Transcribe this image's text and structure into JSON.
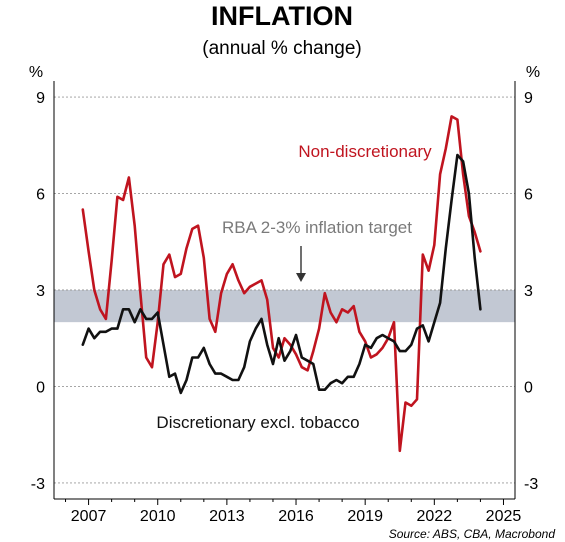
{
  "chart_data": {
    "type": "line",
    "title": "INFLATION",
    "subtitle": "(annual % change)",
    "y_unit_label": "%",
    "ylim": [
      -3.5,
      9.5
    ],
    "y_ticks": [
      -3,
      0,
      3,
      6,
      9
    ],
    "xlim": [
      2005.5,
      2025.5
    ],
    "x_ticks": [
      2007,
      2010,
      2013,
      2016,
      2019,
      2022,
      2025
    ],
    "grid": true,
    "target_band": {
      "label": "RBA 2-3% inflation target",
      "from": 2,
      "to": 3,
      "color": "#c2c8d3"
    },
    "source": "Source: ABS, CBA, Macrobond",
    "series": [
      {
        "name": "Non-discretionary",
        "color": "#c0141f",
        "x": [
          2006.75,
          2007.0,
          2007.25,
          2007.5,
          2007.75,
          2008.0,
          2008.25,
          2008.5,
          2008.75,
          2009.0,
          2009.25,
          2009.5,
          2009.75,
          2010.0,
          2010.25,
          2010.5,
          2010.75,
          2011.0,
          2011.25,
          2011.5,
          2011.75,
          2012.0,
          2012.25,
          2012.5,
          2012.75,
          2013.0,
          2013.25,
          2013.5,
          2013.75,
          2014.0,
          2014.25,
          2014.5,
          2014.75,
          2015.0,
          2015.25,
          2015.5,
          2015.75,
          2016.0,
          2016.25,
          2016.5,
          2016.75,
          2017.0,
          2017.25,
          2017.5,
          2017.75,
          2018.0,
          2018.25,
          2018.5,
          2018.75,
          2019.0,
          2019.25,
          2019.5,
          2019.75,
          2020.0,
          2020.25,
          2020.5,
          2020.75,
          2021.0,
          2021.25,
          2021.5,
          2021.75,
          2022.0,
          2022.25,
          2022.5,
          2022.75,
          2023.0,
          2023.25,
          2023.5,
          2023.75,
          2024.0
        ],
        "values": [
          5.5,
          4.2,
          3.0,
          2.4,
          2.1,
          3.9,
          5.9,
          5.8,
          6.5,
          5.0,
          2.9,
          0.9,
          0.6,
          2.0,
          3.8,
          4.1,
          3.4,
          3.5,
          4.3,
          4.9,
          5.0,
          4.0,
          2.1,
          1.7,
          2.9,
          3.5,
          3.8,
          3.3,
          2.9,
          3.1,
          3.2,
          3.3,
          2.7,
          1.2,
          0.9,
          1.5,
          1.3,
          1.0,
          0.6,
          0.5,
          1.1,
          1.8,
          2.9,
          2.3,
          2.0,
          2.4,
          2.3,
          2.5,
          1.7,
          1.4,
          0.9,
          1.0,
          1.2,
          1.5,
          2.0,
          -2.0,
          -0.5,
          -0.6,
          -0.4,
          4.1,
          3.6,
          4.4,
          6.6,
          7.4,
          8.4,
          8.3,
          6.6,
          5.3,
          4.8,
          4.2
        ]
      },
      {
        "name": "Discretionary excl. tobacco",
        "color": "#111111",
        "x": [
          2006.75,
          2007.0,
          2007.25,
          2007.5,
          2007.75,
          2008.0,
          2008.25,
          2008.5,
          2008.75,
          2009.0,
          2009.25,
          2009.5,
          2009.75,
          2010.0,
          2010.25,
          2010.5,
          2010.75,
          2011.0,
          2011.25,
          2011.5,
          2011.75,
          2012.0,
          2012.25,
          2012.5,
          2012.75,
          2013.0,
          2013.25,
          2013.5,
          2013.75,
          2014.0,
          2014.25,
          2014.5,
          2014.75,
          2015.0,
          2015.25,
          2015.5,
          2015.75,
          2016.0,
          2016.25,
          2016.5,
          2016.75,
          2017.0,
          2017.25,
          2017.5,
          2017.75,
          2018.0,
          2018.25,
          2018.5,
          2018.75,
          2019.0,
          2019.25,
          2019.5,
          2019.75,
          2020.0,
          2020.25,
          2020.5,
          2020.75,
          2021.0,
          2021.25,
          2021.5,
          2021.75,
          2022.0,
          2022.25,
          2022.5,
          2022.75,
          2023.0,
          2023.25,
          2023.5,
          2023.75,
          2024.0
        ],
        "values": [
          1.3,
          1.8,
          1.5,
          1.7,
          1.7,
          1.8,
          1.8,
          2.4,
          2.4,
          2.0,
          2.4,
          2.1,
          2.1,
          2.3,
          1.3,
          0.3,
          0.4,
          -0.2,
          0.2,
          0.9,
          0.9,
          1.2,
          0.7,
          0.4,
          0.4,
          0.3,
          0.2,
          0.2,
          0.6,
          1.4,
          1.8,
          2.1,
          1.3,
          0.7,
          1.5,
          0.8,
          1.1,
          1.6,
          0.9,
          0.8,
          0.7,
          -0.1,
          -0.1,
          0.1,
          0.2,
          0.1,
          0.3,
          0.3,
          0.7,
          1.3,
          1.2,
          1.5,
          1.6,
          1.5,
          1.4,
          1.1,
          1.1,
          1.3,
          1.8,
          1.9,
          1.4,
          2.0,
          2.6,
          4.3,
          5.8,
          7.2,
          7.0,
          6.0,
          4.0,
          2.4
        ]
      }
    ],
    "annotations": [
      {
        "text": "Non-discretionary",
        "series": 0
      },
      {
        "text": "Discretionary excl. tobacco",
        "series": 1
      },
      {
        "text": "RBA 2-3% inflation target",
        "arrow_to_band": true
      }
    ]
  }
}
